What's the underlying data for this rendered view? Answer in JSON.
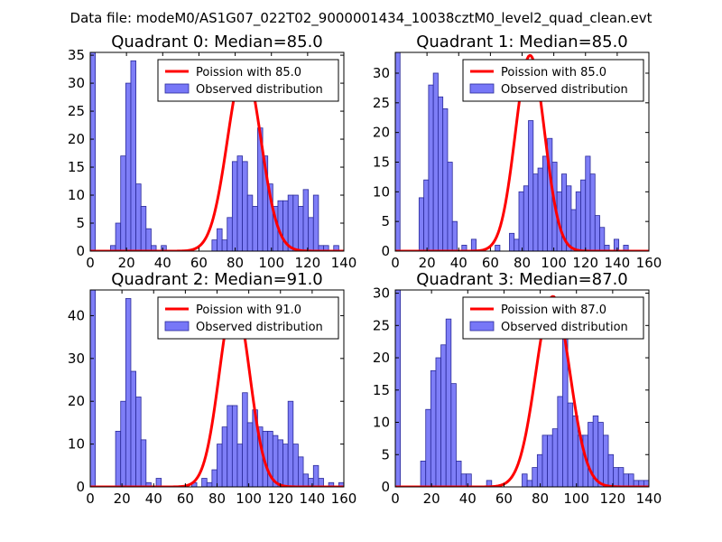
{
  "suptitle": "Data file: modeM0/AS1G07_022T02_9000001434_10038cztM0_level2_quad_clean.evt",
  "colors": {
    "bar_fill": "#7777f7",
    "bar_edge": "#2a2a9a",
    "curve": "#ff0000",
    "axis": "#000000"
  },
  "chart_data": [
    {
      "type": "bar",
      "title": "Quadrant 0: Median=85.0",
      "xlim": [
        0,
        140
      ],
      "ylim": [
        0,
        35.5
      ],
      "xticks": [
        "0",
        "20",
        "40",
        "60",
        "80",
        "100",
        "120",
        "140"
      ],
      "yticks": [
        "0",
        "5",
        "10",
        "15",
        "20",
        "25",
        "30",
        "35"
      ],
      "legend": [
        "Poission with 85.0",
        "Observed distribution"
      ],
      "bin_width": 2.8,
      "bins": [
        {
          "x": 0.0,
          "h": 35.5
        },
        {
          "x": 11.2,
          "h": 1
        },
        {
          "x": 14.0,
          "h": 5
        },
        {
          "x": 16.8,
          "h": 17
        },
        {
          "x": 19.6,
          "h": 30
        },
        {
          "x": 22.4,
          "h": 34
        },
        {
          "x": 25.2,
          "h": 12
        },
        {
          "x": 28.0,
          "h": 8
        },
        {
          "x": 30.8,
          "h": 4
        },
        {
          "x": 33.6,
          "h": 1
        },
        {
          "x": 39.2,
          "h": 1
        },
        {
          "x": 67.2,
          "h": 2
        },
        {
          "x": 70.0,
          "h": 4
        },
        {
          "x": 72.8,
          "h": 2
        },
        {
          "x": 75.6,
          "h": 6
        },
        {
          "x": 78.4,
          "h": 16
        },
        {
          "x": 81.2,
          "h": 17
        },
        {
          "x": 84.0,
          "h": 16
        },
        {
          "x": 86.8,
          "h": 10
        },
        {
          "x": 89.6,
          "h": 8
        },
        {
          "x": 92.4,
          "h": 22
        },
        {
          "x": 95.2,
          "h": 17
        },
        {
          "x": 98.0,
          "h": 12
        },
        {
          "x": 100.8,
          "h": 8
        },
        {
          "x": 103.6,
          "h": 9
        },
        {
          "x": 106.4,
          "h": 9
        },
        {
          "x": 109.2,
          "h": 10
        },
        {
          "x": 112.0,
          "h": 10
        },
        {
          "x": 114.8,
          "h": 8
        },
        {
          "x": 117.6,
          "h": 11
        },
        {
          "x": 120.4,
          "h": 6
        },
        {
          "x": 123.2,
          "h": 10
        },
        {
          "x": 126.0,
          "h": 1
        },
        {
          "x": 128.8,
          "h": 1
        },
        {
          "x": 134.4,
          "h": 1
        }
      ],
      "curve": {
        "mean": 85,
        "peak": 33
      }
    },
    {
      "type": "bar",
      "title": "Quadrant 1: Median=85.0",
      "xlim": [
        0,
        160
      ],
      "ylim": [
        0,
        33.5
      ],
      "xticks": [
        "0",
        "20",
        "40",
        "60",
        "80",
        "100",
        "120",
        "140",
        "160"
      ],
      "yticks": [
        "0",
        "5",
        "10",
        "15",
        "20",
        "25",
        "30"
      ],
      "legend": [
        "Poission with 85.0",
        "Observed distribution"
      ],
      "bin_width": 3.0,
      "bins": [
        {
          "x": 0.0,
          "h": 33.5
        },
        {
          "x": 15.0,
          "h": 9
        },
        {
          "x": 18.0,
          "h": 12
        },
        {
          "x": 21.0,
          "h": 28
        },
        {
          "x": 24.0,
          "h": 30
        },
        {
          "x": 27.0,
          "h": 26
        },
        {
          "x": 30.0,
          "h": 24
        },
        {
          "x": 33.0,
          "h": 15
        },
        {
          "x": 36.0,
          "h": 5
        },
        {
          "x": 42.0,
          "h": 1
        },
        {
          "x": 48.0,
          "h": 2
        },
        {
          "x": 63.0,
          "h": 1
        },
        {
          "x": 72.0,
          "h": 3
        },
        {
          "x": 75.0,
          "h": 2
        },
        {
          "x": 78.0,
          "h": 10
        },
        {
          "x": 81.0,
          "h": 11
        },
        {
          "x": 84.0,
          "h": 22
        },
        {
          "x": 87.0,
          "h": 13
        },
        {
          "x": 90.0,
          "h": 14
        },
        {
          "x": 93.0,
          "h": 16
        },
        {
          "x": 96.0,
          "h": 19
        },
        {
          "x": 99.0,
          "h": 15
        },
        {
          "x": 102.0,
          "h": 10
        },
        {
          "x": 105.0,
          "h": 13
        },
        {
          "x": 108.0,
          "h": 11
        },
        {
          "x": 111.0,
          "h": 7
        },
        {
          "x": 114.0,
          "h": 10
        },
        {
          "x": 117.0,
          "h": 12
        },
        {
          "x": 120.0,
          "h": 16
        },
        {
          "x": 123.0,
          "h": 13
        },
        {
          "x": 126.0,
          "h": 6
        },
        {
          "x": 129.0,
          "h": 4
        },
        {
          "x": 132.0,
          "h": 1
        },
        {
          "x": 138.0,
          "h": 2
        },
        {
          "x": 144.0,
          "h": 1
        }
      ],
      "curve": {
        "mean": 85,
        "peak": 33
      }
    },
    {
      "type": "bar",
      "title": "Quadrant 2: Median=91.0",
      "xlim": [
        0,
        160
      ],
      "ylim": [
        0,
        46
      ],
      "xticks": [
        "0",
        "20",
        "40",
        "60",
        "80",
        "100",
        "120",
        "140",
        "160"
      ],
      "yticks": [
        "0",
        "10",
        "20",
        "30",
        "40"
      ],
      "legend": [
        "Poission with 91.0",
        "Observed distribution"
      ],
      "bin_width": 3.2,
      "bins": [
        {
          "x": 0.0,
          "h": 46
        },
        {
          "x": 16.0,
          "h": 13
        },
        {
          "x": 19.2,
          "h": 20
        },
        {
          "x": 22.4,
          "h": 44
        },
        {
          "x": 25.6,
          "h": 27
        },
        {
          "x": 28.8,
          "h": 21
        },
        {
          "x": 32.0,
          "h": 11
        },
        {
          "x": 35.2,
          "h": 1
        },
        {
          "x": 41.6,
          "h": 2
        },
        {
          "x": 64.0,
          "h": 1
        },
        {
          "x": 70.4,
          "h": 2
        },
        {
          "x": 73.6,
          "h": 1
        },
        {
          "x": 76.8,
          "h": 4
        },
        {
          "x": 80.0,
          "h": 10
        },
        {
          "x": 83.2,
          "h": 14
        },
        {
          "x": 86.4,
          "h": 19
        },
        {
          "x": 89.6,
          "h": 19
        },
        {
          "x": 92.8,
          "h": 10
        },
        {
          "x": 96.0,
          "h": 22
        },
        {
          "x": 99.2,
          "h": 15
        },
        {
          "x": 102.4,
          "h": 18
        },
        {
          "x": 105.6,
          "h": 14
        },
        {
          "x": 108.8,
          "h": 13
        },
        {
          "x": 112.0,
          "h": 13
        },
        {
          "x": 115.2,
          "h": 12
        },
        {
          "x": 118.4,
          "h": 11
        },
        {
          "x": 121.6,
          "h": 10
        },
        {
          "x": 124.8,
          "h": 20
        },
        {
          "x": 128.0,
          "h": 10
        },
        {
          "x": 131.2,
          "h": 7
        },
        {
          "x": 134.4,
          "h": 3
        },
        {
          "x": 137.6,
          "h": 2
        },
        {
          "x": 140.8,
          "h": 5
        },
        {
          "x": 144.0,
          "h": 2
        },
        {
          "x": 150.4,
          "h": 1
        },
        {
          "x": 156.8,
          "h": 1
        }
      ],
      "curve": {
        "mean": 91,
        "peak": 44
      }
    },
    {
      "type": "bar",
      "title": "Quadrant 3: Median=87.0",
      "xlim": [
        0,
        140
      ],
      "ylim": [
        0,
        30.5
      ],
      "xticks": [
        "0",
        "20",
        "40",
        "60",
        "80",
        "100",
        "120",
        "140"
      ],
      "yticks": [
        "0",
        "5",
        "10",
        "15",
        "20",
        "25",
        "30"
      ],
      "legend": [
        "Poission with 87.0",
        "Observed distribution"
      ],
      "bin_width": 2.8,
      "bins": [
        {
          "x": 0.0,
          "h": 30.5
        },
        {
          "x": 14.0,
          "h": 4
        },
        {
          "x": 16.8,
          "h": 12
        },
        {
          "x": 19.6,
          "h": 18
        },
        {
          "x": 22.4,
          "h": 20
        },
        {
          "x": 25.2,
          "h": 22
        },
        {
          "x": 28.0,
          "h": 26
        },
        {
          "x": 30.8,
          "h": 16
        },
        {
          "x": 33.6,
          "h": 4
        },
        {
          "x": 36.4,
          "h": 2
        },
        {
          "x": 39.2,
          "h": 2
        },
        {
          "x": 50.4,
          "h": 1
        },
        {
          "x": 70.0,
          "h": 2
        },
        {
          "x": 72.8,
          "h": 1
        },
        {
          "x": 75.6,
          "h": 3
        },
        {
          "x": 78.4,
          "h": 5
        },
        {
          "x": 81.2,
          "h": 8
        },
        {
          "x": 84.0,
          "h": 8
        },
        {
          "x": 86.8,
          "h": 9
        },
        {
          "x": 89.6,
          "h": 14
        },
        {
          "x": 92.4,
          "h": 28
        },
        {
          "x": 95.2,
          "h": 13
        },
        {
          "x": 98.0,
          "h": 11
        },
        {
          "x": 100.8,
          "h": 8
        },
        {
          "x": 103.6,
          "h": 8
        },
        {
          "x": 106.4,
          "h": 10
        },
        {
          "x": 109.2,
          "h": 11
        },
        {
          "x": 112.0,
          "h": 10
        },
        {
          "x": 114.8,
          "h": 8
        },
        {
          "x": 117.6,
          "h": 5
        },
        {
          "x": 120.4,
          "h": 3
        },
        {
          "x": 123.2,
          "h": 3
        },
        {
          "x": 126.0,
          "h": 2
        },
        {
          "x": 128.8,
          "h": 2
        },
        {
          "x": 131.6,
          "h": 1
        },
        {
          "x": 134.4,
          "h": 1
        },
        {
          "x": 137.2,
          "h": 1
        }
      ],
      "curve": {
        "mean": 87,
        "peak": 29.5
      }
    }
  ]
}
